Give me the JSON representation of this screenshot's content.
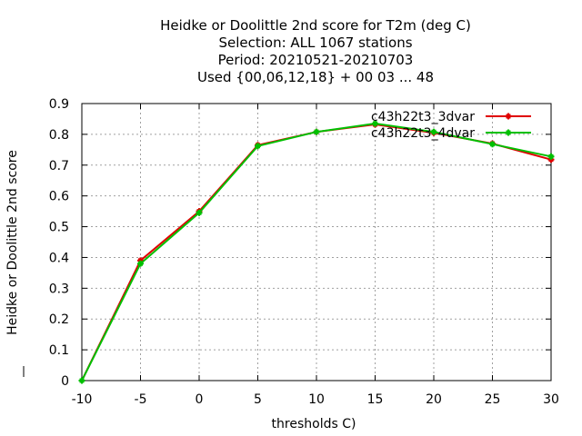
{
  "chart_data": {
    "type": "line",
    "title_lines": [
      "Heidke or Doolittle 2nd score  for T2m (deg C)",
      "Selection: ALL   1067 stations",
      "Period: 20210521-20210703",
      "Used {00,06,12,18} + 00 03 ... 48"
    ],
    "xlabel": "thresholds C)",
    "ylabel": "Heidke or Doolittle 2nd score",
    "x": [
      -10,
      -5,
      0,
      5,
      10,
      15,
      20,
      25,
      30
    ],
    "xlim": [
      -10,
      30
    ],
    "ylim": [
      0,
      0.9
    ],
    "xticks": [
      "-10",
      "-5",
      "0",
      "5",
      "10",
      "15",
      "20",
      "25",
      "30"
    ],
    "yticks": [
      "0",
      "0.1",
      "0.2",
      "0.3",
      "0.4",
      "0.5",
      "0.6",
      "0.7",
      "0.8",
      "0.9"
    ],
    "grid": true,
    "legend_position": "top-right",
    "series": [
      {
        "name": "c43h22t3_3dvar",
        "color": "#e00000",
        "values": [
          0.0,
          0.39,
          0.55,
          0.765,
          0.808,
          0.832,
          0.805,
          0.77,
          0.718
        ]
      },
      {
        "name": "c43h22t3_4dvar",
        "color": "#00c000",
        "values": [
          0.0,
          0.38,
          0.545,
          0.762,
          0.808,
          0.835,
          0.808,
          0.768,
          0.728
        ]
      }
    ]
  }
}
